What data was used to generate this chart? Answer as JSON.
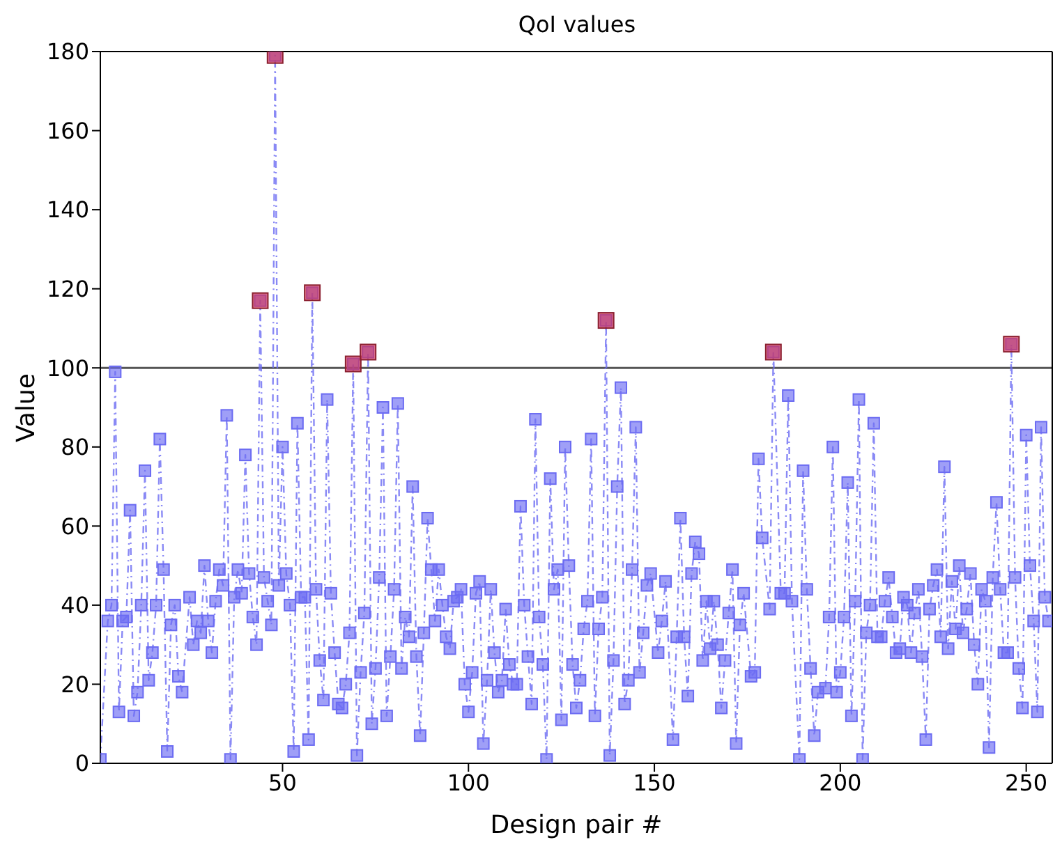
{
  "chart_data": {
    "type": "line",
    "title": "QoI values",
    "xlabel": "Design pair #",
    "ylabel": "Value",
    "xlim": [
      1,
      257
    ],
    "xticks": [
      50,
      100,
      150,
      200,
      250
    ],
    "ylim": [
      0,
      180
    ],
    "yticks": [
      0,
      20,
      40,
      60,
      80,
      100,
      120,
      140,
      160,
      180
    ],
    "marker": "square",
    "line_style": "dashed",
    "ref_lines": [
      {
        "axis": "y",
        "value": 100,
        "color": "#555555"
      }
    ],
    "series": [
      {
        "color": "#6b6bf2",
        "x": [
          1,
          3,
          4,
          5,
          6,
          7,
          8,
          9,
          10,
          11,
          12,
          13,
          14,
          15,
          16,
          17,
          18,
          19,
          20,
          21,
          22,
          23,
          25,
          26,
          27,
          28,
          29,
          30,
          31,
          32,
          33,
          34,
          35,
          36,
          37,
          38,
          39,
          40,
          41,
          42,
          43,
          44,
          45,
          46,
          47,
          48,
          49,
          50,
          51,
          52,
          53,
          54,
          55,
          56,
          57,
          58,
          59,
          60,
          61,
          62,
          63,
          64,
          65,
          66,
          67,
          68,
          69,
          70,
          71,
          72,
          73,
          74,
          75,
          76,
          77,
          78,
          79,
          80,
          81,
          82,
          83,
          84,
          85,
          86,
          87,
          88,
          89,
          90,
          91,
          92,
          93,
          94,
          95,
          96,
          97,
          98,
          99,
          100,
          101,
          102,
          103,
          104,
          105,
          106,
          107,
          108,
          109,
          110,
          111,
          112,
          113,
          114,
          115,
          116,
          117,
          118,
          119,
          120,
          121,
          122,
          123,
          124,
          125,
          126,
          127,
          128,
          129,
          130,
          131,
          132,
          133,
          134,
          135,
          136,
          137,
          138,
          139,
          140,
          141,
          142,
          143,
          144,
          145,
          146,
          147,
          148,
          149,
          151,
          152,
          153,
          155,
          156,
          157,
          158,
          159,
          160,
          161,
          162,
          163,
          164,
          165,
          166,
          167,
          168,
          169,
          170,
          171,
          172,
          173,
          174,
          176,
          177,
          178,
          179,
          181,
          182,
          184,
          185,
          186,
          187,
          189,
          190,
          191,
          192,
          193,
          194,
          196,
          197,
          198,
          199,
          200,
          201,
          202,
          203,
          204,
          205,
          206,
          207,
          208,
          209,
          210,
          211,
          212,
          213,
          214,
          215,
          216,
          217,
          218,
          219,
          220,
          221,
          222,
          223,
          224,
          225,
          226,
          227,
          228,
          229,
          230,
          231,
          232,
          233,
          234,
          235,
          236,
          237,
          238,
          239,
          240,
          241,
          242,
          243,
          244,
          245,
          246,
          247,
          248,
          249,
          250,
          251,
          252,
          253,
          254,
          255,
          256
        ],
        "values": [
          1,
          36,
          40,
          99,
          13,
          36,
          37,
          64,
          12,
          18,
          40,
          74,
          21,
          28,
          40,
          82,
          49,
          3,
          35,
          40,
          22,
          18,
          42,
          30,
          36,
          33,
          50,
          36,
          28,
          41,
          49,
          45,
          88,
          1,
          42,
          49,
          43,
          78,
          48,
          37,
          30,
          117,
          47,
          41,
          35,
          179,
          45,
          80,
          48,
          40,
          3,
          86,
          42,
          42,
          6,
          119,
          44,
          26,
          16,
          92,
          43,
          28,
          15,
          14,
          20,
          33,
          101,
          2,
          23,
          38,
          104,
          10,
          24,
          47,
          90,
          12,
          27,
          44,
          91,
          24,
          37,
          32,
          70,
          27,
          7,
          33,
          62,
          49,
          36,
          49,
          40,
          32,
          29,
          41,
          42,
          44,
          20,
          13,
          23,
          43,
          46,
          5,
          21,
          44,
          28,
          18,
          21,
          39,
          25,
          20,
          20,
          65,
          40,
          27,
          15,
          87,
          37,
          25,
          1,
          72,
          44,
          49,
          11,
          80,
          50,
          25,
          14,
          21,
          34,
          41,
          82,
          12,
          34,
          42,
          112,
          2,
          26,
          70,
          95,
          15,
          21,
          49,
          85,
          23,
          33,
          45,
          48,
          28,
          36,
          46,
          6,
          32,
          62,
          32,
          17,
          48,
          56,
          53,
          26,
          41,
          29,
          41,
          30,
          14,
          26,
          38,
          49,
          5,
          35,
          43,
          22,
          23,
          77,
          57,
          39,
          104,
          43,
          43,
          93,
          41,
          1,
          74,
          44,
          24,
          7,
          18,
          19,
          37,
          80,
          18,
          23,
          37,
          71,
          12,
          41,
          92,
          1,
          33,
          40,
          86,
          32,
          32,
          41,
          47,
          37,
          28,
          29,
          42,
          40,
          28,
          38,
          44,
          27,
          6,
          39,
          45,
          49,
          32,
          75,
          29,
          46,
          34,
          50,
          33,
          39,
          48,
          30,
          20,
          44,
          41,
          4,
          47,
          66,
          44,
          28,
          28,
          106,
          47,
          24,
          14,
          83,
          50,
          36,
          13,
          85,
          42,
          36
        ]
      },
      {
        "type": "scatter",
        "color": "#d9304f",
        "x": [
          44,
          48,
          58,
          69,
          73,
          137,
          182,
          246
        ],
        "values": [
          117,
          179,
          119,
          101,
          104,
          112,
          104,
          106
        ]
      }
    ]
  }
}
